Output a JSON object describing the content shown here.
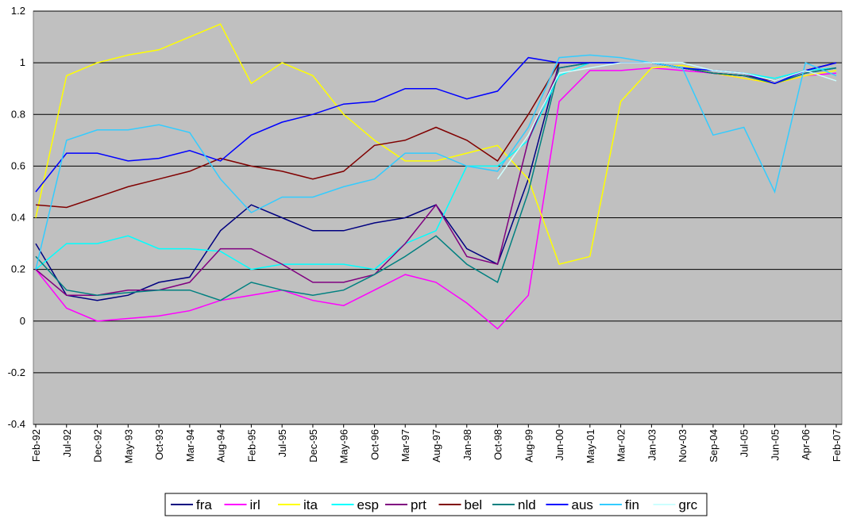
{
  "chart_data": {
    "type": "line",
    "categories": [
      "Feb-92",
      "Jul-92",
      "Dec-92",
      "May-93",
      "Oct-93",
      "Mar-94",
      "Aug-94",
      "Feb-95",
      "Jul-95",
      "Dec-95",
      "May-96",
      "Oct-96",
      "Mar-97",
      "Aug-97",
      "Jan-98",
      "Oct-98",
      "Aug-99",
      "Jun-00",
      "May-01",
      "Mar-02",
      "Jan-03",
      "Nov-03",
      "Sep-04",
      "Jul-05",
      "Jun-05",
      "Apr-06",
      "Feb-07"
    ],
    "ylim": [
      -0.4,
      1.2
    ],
    "yticks": [
      -0.4,
      -0.2,
      0,
      0.2,
      0.4,
      0.6,
      0.8,
      1,
      1.2
    ],
    "grid": true,
    "legend": "bottom",
    "series": [
      {
        "name": "fra",
        "color": "#000080",
        "values": [
          0.3,
          0.1,
          0.08,
          0.1,
          0.15,
          0.17,
          0.35,
          0.45,
          0.4,
          0.35,
          0.35,
          0.38,
          0.4,
          0.45,
          0.28,
          0.22,
          0.55,
          1.0,
          1.0,
          1.0,
          1.0,
          0.98,
          0.96,
          0.95,
          0.93,
          0.97,
          1.0
        ]
      },
      {
        "name": "irl",
        "color": "#ff00ff",
        "values": [
          0.2,
          0.05,
          0.0,
          0.01,
          0.02,
          0.04,
          0.08,
          0.1,
          0.12,
          0.08,
          0.06,
          0.12,
          0.18,
          0.15,
          0.07,
          -0.03,
          0.1,
          0.85,
          0.97,
          0.97,
          0.98,
          0.97,
          0.96,
          0.94,
          0.92,
          0.95,
          0.96
        ]
      },
      {
        "name": "ita",
        "color": "#ffff00",
        "values": [
          0.4,
          0.95,
          1.0,
          1.03,
          1.05,
          1.1,
          1.15,
          0.92,
          1.0,
          0.95,
          0.8,
          0.7,
          0.62,
          0.62,
          0.65,
          0.68,
          0.55,
          0.22,
          0.25,
          0.85,
          0.98,
          0.99,
          0.96,
          0.94,
          0.92,
          0.95,
          0.97
        ]
      },
      {
        "name": "esp",
        "color": "#00ffff",
        "values": [
          0.2,
          0.3,
          0.3,
          0.33,
          0.28,
          0.28,
          0.27,
          0.2,
          0.22,
          0.22,
          0.22,
          0.2,
          0.3,
          0.35,
          0.6,
          0.6,
          0.7,
          0.95,
          1.0,
          1.0,
          1.0,
          0.98,
          0.97,
          0.96,
          0.94,
          0.97,
          0.98
        ]
      },
      {
        "name": "prt",
        "color": "#800080",
        "values": [
          0.2,
          0.1,
          0.1,
          0.12,
          0.12,
          0.15,
          0.28,
          0.28,
          0.22,
          0.15,
          0.15,
          0.18,
          0.3,
          0.45,
          0.25,
          0.22,
          0.7,
          0.98,
          1.0,
          1.0,
          1.0,
          0.98,
          0.96,
          0.95,
          0.92,
          0.96,
          0.98
        ]
      },
      {
        "name": "bel",
        "color": "#800000",
        "values": [
          0.45,
          0.44,
          0.48,
          0.52,
          0.55,
          0.58,
          0.63,
          0.6,
          0.58,
          0.55,
          0.58,
          0.68,
          0.7,
          0.75,
          0.7,
          0.62,
          0.8,
          1.0,
          1.0,
          1.0,
          1.0,
          0.98,
          0.96,
          0.95,
          0.93,
          0.97,
          1.0
        ]
      },
      {
        "name": "nld",
        "color": "#008080",
        "values": [
          0.25,
          0.12,
          0.1,
          0.11,
          0.12,
          0.12,
          0.08,
          0.15,
          0.12,
          0.1,
          0.12,
          0.18,
          0.25,
          0.33,
          0.22,
          0.15,
          0.5,
          0.98,
          1.0,
          1.0,
          1.0,
          0.98,
          0.96,
          0.95,
          0.92,
          0.96,
          0.98
        ]
      },
      {
        "name": "aus",
        "color": "#0000ff",
        "values": [
          0.5,
          0.65,
          0.65,
          0.62,
          0.63,
          0.66,
          0.62,
          0.72,
          0.77,
          0.8,
          0.84,
          0.85,
          0.9,
          0.9,
          0.86,
          0.89,
          1.02,
          1.0,
          1.0,
          1.0,
          1.0,
          0.98,
          0.97,
          0.96,
          0.92,
          0.97,
          1.0
        ]
      },
      {
        "name": "fin",
        "color": "#33ccff",
        "values": [
          0.2,
          0.7,
          0.74,
          0.74,
          0.76,
          0.73,
          0.55,
          0.42,
          0.48,
          0.48,
          0.52,
          0.55,
          0.65,
          0.65,
          0.6,
          0.58,
          0.75,
          1.02,
          1.03,
          1.02,
          1.0,
          0.98,
          0.72,
          0.75,
          0.5,
          1.0,
          0.95
        ]
      },
      {
        "name": "grc",
        "color": "#ccffff",
        "values": [
          null,
          null,
          null,
          null,
          null,
          null,
          null,
          null,
          null,
          null,
          null,
          null,
          null,
          null,
          null,
          0.55,
          0.72,
          0.96,
          0.98,
          1.0,
          1.0,
          1.0,
          0.97,
          0.96,
          0.93,
          0.97,
          0.93
        ]
      }
    ]
  }
}
